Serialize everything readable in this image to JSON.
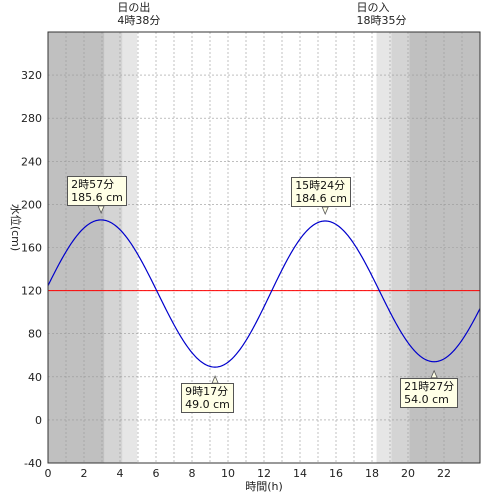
{
  "chart_data": {
    "type": "line",
    "xlabel": "時間(h)",
    "ylabel": "水位(cm)",
    "xlim": [
      0,
      24
    ],
    "ylim": [
      -40,
      360
    ],
    "xticks": [
      0,
      2,
      4,
      6,
      8,
      10,
      12,
      14,
      16,
      18,
      20,
      22
    ],
    "yticks": [
      -40,
      0,
      40,
      80,
      120,
      160,
      200,
      240,
      280,
      320
    ],
    "reference_level": 120,
    "sunrise": {
      "title": "日の出",
      "time": "4時38分",
      "hour": 4.633
    },
    "sunset": {
      "title": "日の入",
      "time": "18時35分",
      "hour": 18.583
    },
    "extrema": [
      {
        "hour": 2.95,
        "value": 185.6,
        "time_label": "2時57分",
        "value_label": "185.6 cm",
        "kind": "high"
      },
      {
        "hour": 9.283,
        "value": 49.0,
        "time_label": "9時17分",
        "value_label": "49.0 cm",
        "kind": "low"
      },
      {
        "hour": 15.4,
        "value": 184.6,
        "time_label": "15時24分",
        "value_label": "184.6 cm",
        "kind": "high"
      },
      {
        "hour": 21.45,
        "value": 54.0,
        "time_label": "21時27分",
        "value_label": "54.0 cm",
        "kind": "low"
      }
    ],
    "series": [
      {
        "x": [
          0,
          24
        ],
        "y_start": 126,
        "y_end": 108
      }
    ],
    "colors": {
      "tide_line": "#0000cc",
      "reference_line": "#ff0000",
      "night": "#c0c0c0",
      "twilight_dark": "#d4d4d4",
      "twilight_light": "#e6e6e6",
      "day": "#ffffff",
      "grid": "#999999"
    }
  }
}
